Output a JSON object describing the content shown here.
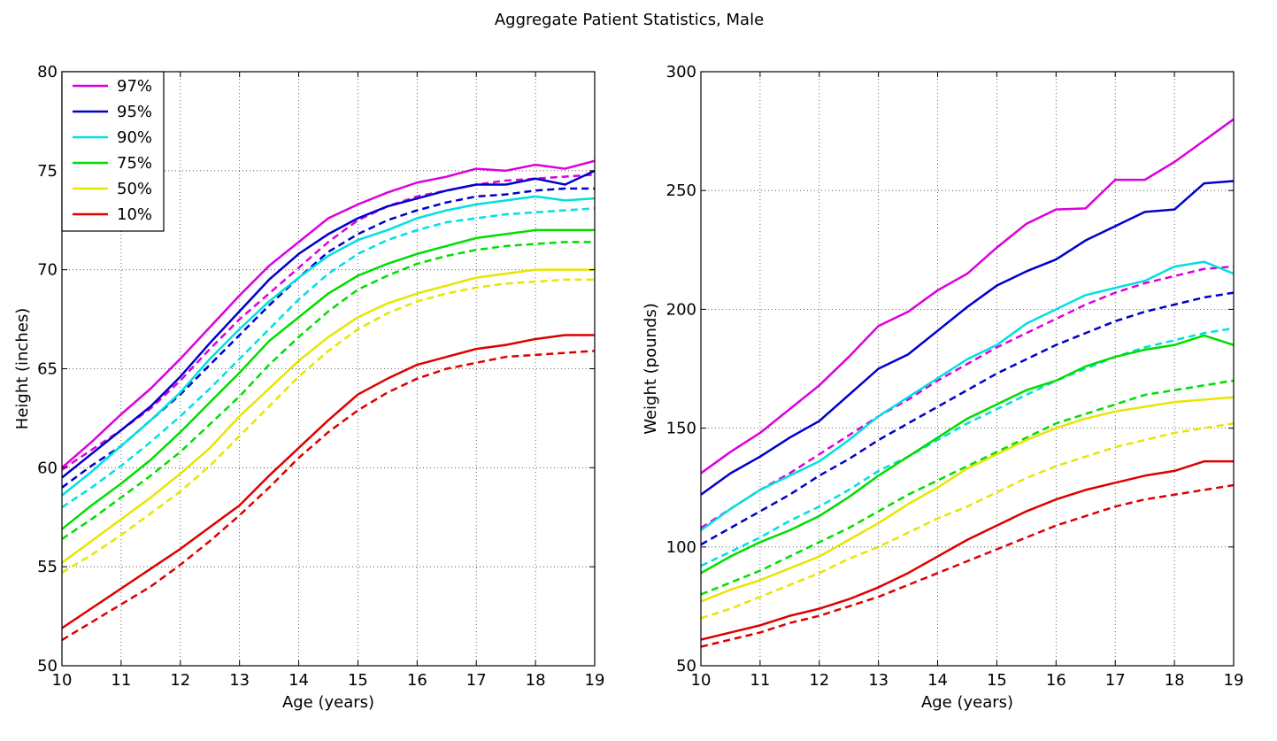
{
  "suptitle": "Aggregate Patient Statistics, Male",
  "colors": {
    "p97": "#dd00dd",
    "p95": "#0000cc",
    "p90": "#00e0e0",
    "p75": "#00dd00",
    "p50": "#e6e600",
    "p10": "#dd0000"
  },
  "chart_data": [
    {
      "type": "line",
      "title": "",
      "xlabel": "Age (years)",
      "ylabel": "Height (inches)",
      "xlim": [
        10,
        19
      ],
      "ylim": [
        50,
        80
      ],
      "xticks": [
        10,
        11,
        12,
        13,
        14,
        15,
        16,
        17,
        18,
        19
      ],
      "yticks": [
        50,
        55,
        60,
        65,
        70,
        75,
        80
      ],
      "grid": true,
      "legend": {
        "placement": "top-left",
        "entries": [
          "97%",
          "95%",
          "90%",
          "75%",
          "50%",
          "10%"
        ]
      },
      "x": [
        10,
        10.5,
        11,
        11.5,
        12,
        12.5,
        13,
        13.5,
        14,
        14.5,
        15,
        15.5,
        16,
        16.5,
        17,
        17.5,
        18,
        18.5,
        19
      ],
      "series": [
        {
          "name": "97%",
          "color_key": "p97",
          "style": "solid",
          "values": [
            60.0,
            61.3,
            62.7,
            64.0,
            65.5,
            67.1,
            68.7,
            70.2,
            71.4,
            72.6,
            73.3,
            73.9,
            74.4,
            74.7,
            75.1,
            75.0,
            75.3,
            75.1,
            75.5
          ]
        },
        {
          "name": "95%",
          "color_key": "p95",
          "style": "solid",
          "values": [
            59.5,
            60.7,
            61.9,
            63.1,
            64.6,
            66.3,
            67.9,
            69.5,
            70.8,
            71.8,
            72.6,
            73.2,
            73.6,
            74.0,
            74.3,
            74.3,
            74.6,
            74.3,
            75.0
          ]
        },
        {
          "name": "90%",
          "color_key": "p90",
          "style": "solid",
          "values": [
            58.6,
            59.8,
            61.1,
            62.4,
            63.8,
            65.5,
            67.0,
            68.4,
            69.6,
            70.7,
            71.5,
            72.0,
            72.6,
            73.0,
            73.3,
            73.5,
            73.7,
            73.5,
            73.6
          ]
        },
        {
          "name": "75%",
          "color_key": "p75",
          "style": "solid",
          "values": [
            56.9,
            58.1,
            59.2,
            60.4,
            61.8,
            63.3,
            64.8,
            66.4,
            67.6,
            68.8,
            69.7,
            70.3,
            70.8,
            71.2,
            71.6,
            71.8,
            72.0,
            72.0,
            72.0
          ]
        },
        {
          "name": "50%",
          "color_key": "p50",
          "style": "solid",
          "values": [
            55.2,
            56.3,
            57.4,
            58.5,
            59.7,
            61.0,
            62.6,
            64.0,
            65.4,
            66.6,
            67.6,
            68.3,
            68.8,
            69.2,
            69.6,
            69.8,
            70.0,
            70.0,
            70.0
          ]
        },
        {
          "name": "10%",
          "color_key": "p10",
          "style": "solid",
          "values": [
            51.9,
            52.9,
            53.9,
            54.9,
            55.9,
            57.0,
            58.1,
            59.6,
            61.0,
            62.4,
            63.7,
            64.5,
            65.2,
            65.6,
            66.0,
            66.2,
            66.5,
            66.7,
            66.7
          ]
        },
        {
          "name": "",
          "color_key": "p97",
          "style": "dashed",
          "values": [
            59.9,
            60.9,
            61.9,
            63.0,
            64.4,
            66.0,
            67.5,
            68.8,
            70.1,
            71.4,
            72.5,
            73.2,
            73.7,
            74.0,
            74.3,
            74.5,
            74.6,
            74.7,
            74.8
          ]
        },
        {
          "name": "",
          "color_key": "p95",
          "style": "dashed",
          "values": [
            59.0,
            60.1,
            61.1,
            62.4,
            63.7,
            65.2,
            66.7,
            68.2,
            69.6,
            70.9,
            71.8,
            72.5,
            73.0,
            73.4,
            73.7,
            73.8,
            74.0,
            74.1,
            74.1
          ]
        },
        {
          "name": "",
          "color_key": "p90",
          "style": "dashed",
          "values": [
            58.0,
            59.0,
            60.1,
            61.3,
            62.6,
            64.0,
            65.5,
            67.0,
            68.5,
            69.8,
            70.8,
            71.5,
            72.0,
            72.4,
            72.6,
            72.8,
            72.9,
            73.0,
            73.1
          ]
        },
        {
          "name": "",
          "color_key": "p75",
          "style": "dashed",
          "values": [
            56.4,
            57.4,
            58.5,
            59.6,
            60.8,
            62.2,
            63.6,
            65.2,
            66.6,
            67.9,
            69.0,
            69.7,
            70.3,
            70.7,
            71.0,
            71.2,
            71.3,
            71.4,
            71.4
          ]
        },
        {
          "name": "",
          "color_key": "p50",
          "style": "dashed",
          "values": [
            54.7,
            55.6,
            56.6,
            57.7,
            58.8,
            60.1,
            61.6,
            63.1,
            64.6,
            65.9,
            67.0,
            67.8,
            68.4,
            68.8,
            69.1,
            69.3,
            69.4,
            69.5,
            69.5
          ]
        },
        {
          "name": "",
          "color_key": "p10",
          "style": "dashed",
          "values": [
            51.3,
            52.2,
            53.1,
            54.0,
            55.1,
            56.3,
            57.6,
            59.0,
            60.5,
            61.8,
            62.9,
            63.8,
            64.5,
            65.0,
            65.3,
            65.6,
            65.7,
            65.8,
            65.9
          ]
        }
      ]
    },
    {
      "type": "line",
      "title": "",
      "xlabel": "Age (years)",
      "ylabel": "Weight (pounds)",
      "xlim": [
        10,
        19
      ],
      "ylim": [
        50,
        300
      ],
      "xticks": [
        10,
        11,
        12,
        13,
        14,
        15,
        16,
        17,
        18,
        19
      ],
      "yticks": [
        50,
        100,
        150,
        200,
        250,
        300
      ],
      "grid": true,
      "x": [
        10,
        10.5,
        11,
        11.5,
        12,
        12.5,
        13,
        13.5,
        14,
        14.5,
        15,
        15.5,
        16,
        16.5,
        17,
        17.5,
        18,
        18.5,
        19
      ],
      "series": [
        {
          "name": "97%",
          "color_key": "p97",
          "style": "solid",
          "values": [
            131,
            140,
            148,
            158,
            168,
            180,
            193,
            199,
            208,
            215,
            226,
            236,
            242,
            242.5,
            254.5,
            254.5,
            262,
            271,
            280
          ]
        },
        {
          "name": "95%",
          "color_key": "p95",
          "style": "solid",
          "values": [
            122,
            131,
            138,
            146,
            153,
            164,
            175,
            181,
            191,
            201,
            210,
            216,
            221,
            229,
            235,
            241,
            242,
            253,
            254
          ]
        },
        {
          "name": "90%",
          "color_key": "p90",
          "style": "solid",
          "values": [
            107,
            116,
            124,
            130,
            136,
            145,
            155,
            163,
            171,
            179,
            185,
            194,
            200,
            206,
            209,
            212,
            218,
            220,
            215
          ]
        },
        {
          "name": "75%",
          "color_key": "p75",
          "style": "solid",
          "values": [
            89,
            96,
            102,
            107,
            113,
            121,
            130,
            138,
            146,
            154,
            160,
            166,
            170,
            176,
            180,
            183,
            185,
            189,
            185
          ]
        },
        {
          "name": "50%",
          "color_key": "p50",
          "style": "solid",
          "values": [
            77,
            82,
            86,
            91,
            96,
            103,
            110,
            118,
            125,
            133,
            139,
            145,
            150,
            154,
            157,
            159,
            161,
            162,
            163
          ]
        },
        {
          "name": "10%",
          "color_key": "p10",
          "style": "solid",
          "values": [
            61,
            64,
            67,
            71,
            74,
            78,
            83,
            89,
            96,
            103,
            109,
            115,
            120,
            124,
            127,
            130,
            132,
            136,
            136
          ]
        },
        {
          "name": "",
          "color_key": "p97",
          "style": "dashed",
          "values": [
            108,
            116,
            124,
            131,
            139,
            147,
            155,
            162,
            170,
            177,
            184,
            190,
            196,
            202,
            207,
            211,
            214,
            217,
            218
          ]
        },
        {
          "name": "",
          "color_key": "p95",
          "style": "dashed",
          "values": [
            101,
            108,
            115,
            122,
            130,
            137,
            145,
            152,
            159,
            166,
            173,
            179,
            185,
            190,
            195,
            199,
            202,
            205,
            207
          ]
        },
        {
          "name": "",
          "color_key": "p90",
          "style": "dashed",
          "values": [
            92,
            98,
            104,
            111,
            117,
            124,
            132,
            138,
            145,
            152,
            158,
            164,
            170,
            175,
            180,
            184,
            187,
            190,
            192
          ]
        },
        {
          "name": "",
          "color_key": "p75",
          "style": "dashed",
          "values": [
            80,
            85,
            90,
            96,
            102,
            108,
            115,
            122,
            128,
            134,
            140,
            146,
            152,
            156,
            160,
            164,
            166,
            168,
            170
          ]
        },
        {
          "name": "",
          "color_key": "p50",
          "style": "dashed",
          "values": [
            70,
            74,
            79,
            84,
            89,
            95,
            100,
            106,
            112,
            117,
            123,
            129,
            134,
            138,
            142,
            145,
            148,
            150,
            152
          ]
        },
        {
          "name": "",
          "color_key": "p10",
          "style": "dashed",
          "values": [
            58,
            61,
            64,
            68,
            71,
            75,
            79,
            84,
            89,
            94,
            99,
            104,
            109,
            113,
            117,
            120,
            122,
            124,
            126
          ]
        }
      ]
    }
  ]
}
